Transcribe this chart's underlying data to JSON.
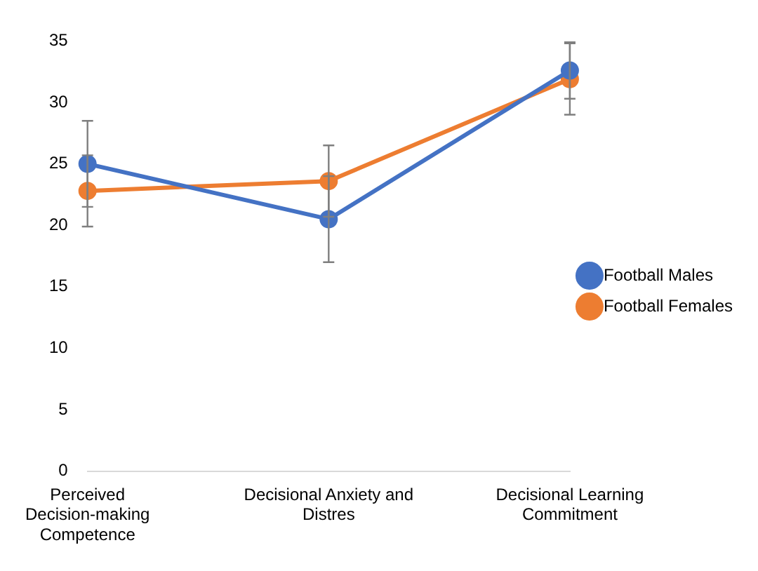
{
  "chart_data": {
    "type": "line",
    "categories": [
      "Perceived Decision-making Competence",
      "Decisional Anxiety and Distres",
      "Decisional Learning Commitment"
    ],
    "series": [
      {
        "name": "Football Males",
        "color": "#4472c4",
        "values": [
          25.0,
          20.5,
          32.6
        ],
        "errors": [
          3.5,
          3.5,
          2.3
        ]
      },
      {
        "name": "Football Females",
        "color": "#ed7d31",
        "values": [
          22.8,
          23.6,
          31.9
        ],
        "errors": [
          2.9,
          2.9,
          2.9
        ]
      }
    ],
    "ylim": [
      0,
      35
    ],
    "yticks": [
      0,
      5,
      10,
      15,
      20,
      25,
      30,
      35
    ],
    "grid": false,
    "legend": "right",
    "marker": "circle",
    "line_style": "solid"
  }
}
